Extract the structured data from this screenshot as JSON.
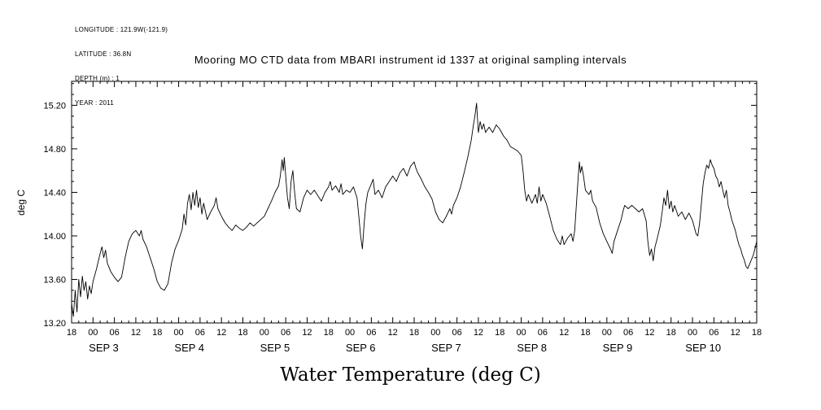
{
  "metadata": {
    "lines": [
      "LONGITUDE : 121.9W(-121.9)",
      "LATITUDE : 36.8N",
      "DEPTH (m) : 1",
      "YEAR : 2011"
    ]
  },
  "title": "Mooring MO CTD data from MBARI instrument id 1337 at original sampling intervals",
  "footer_label": "Water Temperature (deg C)",
  "chart_data": {
    "type": "line",
    "title": "Mooring MO CTD data from MBARI instrument id 1337 at original sampling intervals",
    "xlabel": "Water Temperature (deg C)",
    "ylabel": "deg C",
    "ylim": [
      13.2,
      15.42
    ],
    "y_major_ticks": [
      13.2,
      13.6,
      14.0,
      14.4,
      14.8,
      15.2
    ],
    "y_minor_tick_step": 0.1,
    "x_start_hour": 18,
    "x_hours_span": 192,
    "x_major_tick_interval_hours": 6,
    "x_minor_tick_interval_hours": 2,
    "x_date_labels": [
      "SEP 3",
      "SEP 4",
      "SEP 5",
      "SEP 6",
      "SEP 7",
      "SEP 8",
      "SEP 9",
      "SEP 10"
    ],
    "grid": false,
    "line_color": "#000000",
    "series": [
      {
        "name": "Water Temperature (deg C)",
        "points": [
          [
            0,
            13.38
          ],
          [
            0.5,
            13.26
          ],
          [
            1,
            13.5
          ],
          [
            1.5,
            13.3
          ],
          [
            2,
            13.6
          ],
          [
            2.5,
            13.44
          ],
          [
            3,
            13.63
          ],
          [
            3.5,
            13.5
          ],
          [
            4,
            13.58
          ],
          [
            4.5,
            13.42
          ],
          [
            5,
            13.54
          ],
          [
            5.5,
            13.47
          ],
          [
            6,
            13.58
          ],
          [
            7,
            13.7
          ],
          [
            8,
            13.84
          ],
          [
            8.5,
            13.9
          ],
          [
            9,
            13.8
          ],
          [
            9.5,
            13.87
          ],
          [
            10,
            13.75
          ],
          [
            11,
            13.67
          ],
          [
            12,
            13.62
          ],
          [
            13,
            13.58
          ],
          [
            14,
            13.62
          ],
          [
            15,
            13.8
          ],
          [
            16,
            13.95
          ],
          [
            17,
            14.02
          ],
          [
            18,
            14.05
          ],
          [
            19,
            14.0
          ],
          [
            19.5,
            14.05
          ],
          [
            20,
            13.97
          ],
          [
            21,
            13.9
          ],
          [
            22,
            13.8
          ],
          [
            23,
            13.7
          ],
          [
            24,
            13.58
          ],
          [
            25,
            13.52
          ],
          [
            26,
            13.5
          ],
          [
            27,
            13.56
          ],
          [
            28,
            13.75
          ],
          [
            29,
            13.88
          ],
          [
            30,
            13.96
          ],
          [
            31,
            14.06
          ],
          [
            31.5,
            14.2
          ],
          [
            32,
            14.1
          ],
          [
            32.5,
            14.3
          ],
          [
            33,
            14.38
          ],
          [
            33.5,
            14.24
          ],
          [
            34,
            14.4
          ],
          [
            34.5,
            14.28
          ],
          [
            35,
            14.42
          ],
          [
            35.5,
            14.26
          ],
          [
            36,
            14.35
          ],
          [
            36.5,
            14.2
          ],
          [
            37,
            14.3
          ],
          [
            38,
            14.15
          ],
          [
            39,
            14.22
          ],
          [
            40,
            14.28
          ],
          [
            40.5,
            14.35
          ],
          [
            41,
            14.25
          ],
          [
            42,
            14.18
          ],
          [
            43,
            14.12
          ],
          [
            44,
            14.08
          ],
          [
            45,
            14.05
          ],
          [
            46,
            14.1
          ],
          [
            47,
            14.07
          ],
          [
            48,
            14.05
          ],
          [
            49,
            14.08
          ],
          [
            50,
            14.12
          ],
          [
            51,
            14.09
          ],
          [
            52,
            14.12
          ],
          [
            53,
            14.15
          ],
          [
            54,
            14.18
          ],
          [
            55,
            14.25
          ],
          [
            56,
            14.32
          ],
          [
            57,
            14.4
          ],
          [
            58,
            14.46
          ],
          [
            58.5,
            14.55
          ],
          [
            59,
            14.7
          ],
          [
            59.3,
            14.6
          ],
          [
            59.6,
            14.72
          ],
          [
            60,
            14.55
          ],
          [
            60.5,
            14.35
          ],
          [
            61,
            14.25
          ],
          [
            61.5,
            14.5
          ],
          [
            62,
            14.6
          ],
          [
            62.5,
            14.4
          ],
          [
            63,
            14.25
          ],
          [
            64,
            14.22
          ],
          [
            65,
            14.35
          ],
          [
            66,
            14.42
          ],
          [
            67,
            14.38
          ],
          [
            68,
            14.42
          ],
          [
            69,
            14.37
          ],
          [
            70,
            14.32
          ],
          [
            71,
            14.4
          ],
          [
            72,
            14.45
          ],
          [
            72.5,
            14.5
          ],
          [
            73,
            14.42
          ],
          [
            74,
            14.46
          ],
          [
            75,
            14.4
          ],
          [
            75.5,
            14.48
          ],
          [
            76,
            14.38
          ],
          [
            77,
            14.42
          ],
          [
            78,
            14.4
          ],
          [
            79,
            14.45
          ],
          [
            80,
            14.35
          ],
          [
            80.5,
            14.18
          ],
          [
            81,
            14.0
          ],
          [
            81.5,
            13.88
          ],
          [
            82,
            14.12
          ],
          [
            82.5,
            14.3
          ],
          [
            83,
            14.4
          ],
          [
            84,
            14.48
          ],
          [
            84.5,
            14.52
          ],
          [
            85,
            14.38
          ],
          [
            86,
            14.42
          ],
          [
            87,
            14.35
          ],
          [
            88,
            14.45
          ],
          [
            89,
            14.5
          ],
          [
            90,
            14.55
          ],
          [
            91,
            14.5
          ],
          [
            92,
            14.58
          ],
          [
            93,
            14.62
          ],
          [
            94,
            14.55
          ],
          [
            95,
            14.64
          ],
          [
            96,
            14.68
          ],
          [
            96.5,
            14.62
          ],
          [
            97,
            14.58
          ],
          [
            98,
            14.52
          ],
          [
            99,
            14.45
          ],
          [
            100,
            14.4
          ],
          [
            101,
            14.34
          ],
          [
            102,
            14.22
          ],
          [
            103,
            14.15
          ],
          [
            104,
            14.12
          ],
          [
            105,
            14.18
          ],
          [
            106,
            14.25
          ],
          [
            106.5,
            14.2
          ],
          [
            107,
            14.28
          ],
          [
            108,
            14.35
          ],
          [
            109,
            14.45
          ],
          [
            110,
            14.58
          ],
          [
            111,
            14.72
          ],
          [
            112,
            14.88
          ],
          [
            112.5,
            15.0
          ],
          [
            113,
            15.1
          ],
          [
            113.5,
            15.22
          ],
          [
            114,
            14.95
          ],
          [
            114.5,
            15.05
          ],
          [
            115,
            14.98
          ],
          [
            115.5,
            15.03
          ],
          [
            116,
            14.95
          ],
          [
            117,
            15.0
          ],
          [
            118,
            14.95
          ],
          [
            119,
            15.02
          ],
          [
            120,
            14.98
          ],
          [
            121,
            14.92
          ],
          [
            122,
            14.88
          ],
          [
            123,
            14.82
          ],
          [
            124,
            14.8
          ],
          [
            125,
            14.78
          ],
          [
            126,
            14.74
          ],
          [
            126.5,
            14.6
          ],
          [
            127,
            14.42
          ],
          [
            127.5,
            14.32
          ],
          [
            128,
            14.38
          ],
          [
            129,
            14.3
          ],
          [
            130,
            14.38
          ],
          [
            130.5,
            14.3
          ],
          [
            131,
            14.45
          ],
          [
            131.5,
            14.32
          ],
          [
            132,
            14.38
          ],
          [
            133,
            14.3
          ],
          [
            134,
            14.18
          ],
          [
            135,
            14.05
          ],
          [
            136,
            13.97
          ],
          [
            137,
            13.92
          ],
          [
            137.5,
            14.0
          ],
          [
            138,
            13.92
          ],
          [
            139,
            13.98
          ],
          [
            140,
            14.02
          ],
          [
            140.5,
            13.95
          ],
          [
            141,
            14.05
          ],
          [
            141.5,
            14.3
          ],
          [
            142,
            14.55
          ],
          [
            142.3,
            14.68
          ],
          [
            142.6,
            14.58
          ],
          [
            143,
            14.64
          ],
          [
            143.5,
            14.54
          ],
          [
            144,
            14.42
          ],
          [
            145,
            14.38
          ],
          [
            145.5,
            14.42
          ],
          [
            146,
            14.32
          ],
          [
            147,
            14.26
          ],
          [
            148,
            14.12
          ],
          [
            149,
            14.02
          ],
          [
            150,
            13.95
          ],
          [
            151,
            13.88
          ],
          [
            151.5,
            13.84
          ],
          [
            152,
            13.95
          ],
          [
            153,
            14.05
          ],
          [
            154,
            14.15
          ],
          [
            154.5,
            14.22
          ],
          [
            155,
            14.28
          ],
          [
            156,
            14.25
          ],
          [
            157,
            14.28
          ],
          [
            158,
            14.25
          ],
          [
            159,
            14.22
          ],
          [
            160,
            14.25
          ],
          [
            161,
            14.14
          ],
          [
            161.5,
            13.95
          ],
          [
            162,
            13.82
          ],
          [
            162.5,
            13.88
          ],
          [
            163,
            13.77
          ],
          [
            163.5,
            13.9
          ],
          [
            164,
            13.96
          ],
          [
            165,
            14.1
          ],
          [
            165.5,
            14.22
          ],
          [
            166,
            14.35
          ],
          [
            166.5,
            14.28
          ],
          [
            167,
            14.42
          ],
          [
            167.5,
            14.25
          ],
          [
            168,
            14.32
          ],
          [
            168.5,
            14.22
          ],
          [
            169,
            14.28
          ],
          [
            170,
            14.18
          ],
          [
            171,
            14.22
          ],
          [
            172,
            14.15
          ],
          [
            173,
            14.21
          ],
          [
            174,
            14.14
          ],
          [
            174.5,
            14.08
          ],
          [
            175,
            14.02
          ],
          [
            175.5,
            14.0
          ],
          [
            176,
            14.12
          ],
          [
            176.5,
            14.3
          ],
          [
            177,
            14.48
          ],
          [
            177.5,
            14.58
          ],
          [
            178,
            14.65
          ],
          [
            178.5,
            14.62
          ],
          [
            179,
            14.7
          ],
          [
            179.5,
            14.65
          ],
          [
            180,
            14.62
          ],
          [
            180.5,
            14.55
          ],
          [
            181,
            14.52
          ],
          [
            181.5,
            14.45
          ],
          [
            182,
            14.5
          ],
          [
            182.5,
            14.42
          ],
          [
            183,
            14.35
          ],
          [
            183.5,
            14.42
          ],
          [
            184,
            14.28
          ],
          [
            184.5,
            14.22
          ],
          [
            185,
            14.15
          ],
          [
            185.5,
            14.1
          ],
          [
            186,
            14.05
          ],
          [
            186.5,
            13.98
          ],
          [
            187,
            13.92
          ],
          [
            187.5,
            13.88
          ],
          [
            188,
            13.82
          ],
          [
            188.5,
            13.78
          ],
          [
            189,
            13.72
          ],
          [
            189.5,
            13.7
          ],
          [
            190,
            13.74
          ],
          [
            190.5,
            13.78
          ],
          [
            191,
            13.82
          ],
          [
            191.5,
            13.88
          ],
          [
            192,
            13.95
          ]
        ]
      }
    ]
  }
}
